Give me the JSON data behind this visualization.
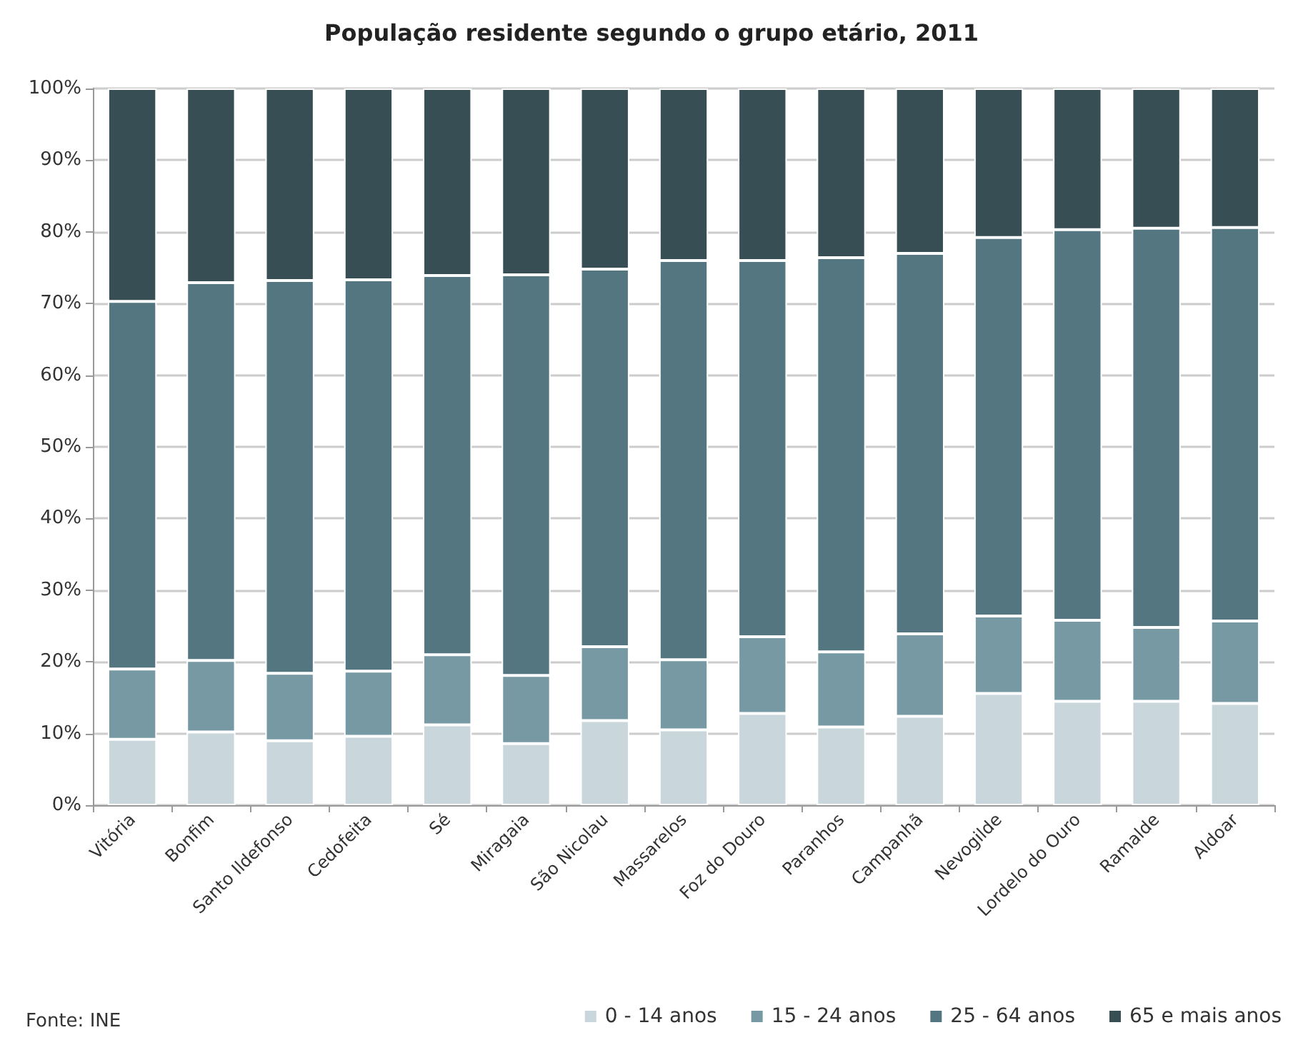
{
  "chart_data": {
    "type": "bar",
    "title": "População residente segundo o grupo etário, 2011",
    "stacked": true,
    "categories": [
      "Vitória",
      "Bonfim",
      "Santo Ildefonso",
      "Cedofeita",
      "Sé",
      "Miragaia",
      "São Nicolau",
      "Massarelos",
      "Foz do Douro",
      "Paranhos",
      "Campanhã",
      "Nevogilde",
      "Lordelo do Ouro",
      "Ramalde",
      "Aldoar"
    ],
    "series": [
      {
        "name": "0 - 14 anos",
        "color": "#c9d7dc",
        "values": [
          9.2,
          10.2,
          9.0,
          9.6,
          11.2,
          8.6,
          11.8,
          10.5,
          12.8,
          10.9,
          12.4,
          15.6,
          14.5,
          14.5,
          14.2
        ]
      },
      {
        "name": "15 - 24 anos",
        "color": "#7699a4",
        "values": [
          9.8,
          10.0,
          9.4,
          9.1,
          9.8,
          9.5,
          10.3,
          9.8,
          10.7,
          10.5,
          11.5,
          10.8,
          11.3,
          10.3,
          11.5
        ]
      },
      {
        "name": "25 - 64 anos",
        "color": "#537680",
        "values": [
          51.3,
          52.7,
          54.8,
          54.6,
          52.9,
          55.9,
          52.7,
          55.7,
          52.5,
          55.0,
          53.1,
          52.8,
          54.5,
          55.7,
          54.9
        ]
      },
      {
        "name": "65 e mais anos",
        "color": "#374e55",
        "values": [
          29.7,
          27.1,
          26.8,
          26.7,
          26.1,
          26.0,
          25.2,
          24.0,
          24.0,
          23.6,
          23.0,
          20.8,
          19.7,
          19.5,
          19.4
        ]
      }
    ],
    "ylim": [
      0,
      100
    ],
    "yticks": [
      {
        "value": 0,
        "label": "0%"
      },
      {
        "value": 10,
        "label": "10%"
      },
      {
        "value": 20,
        "label": "20%"
      },
      {
        "value": 30,
        "label": "30%"
      },
      {
        "value": 40,
        "label": "40%"
      },
      {
        "value": 50,
        "label": "50%"
      },
      {
        "value": 60,
        "label": "60%"
      },
      {
        "value": 70,
        "label": "70%"
      },
      {
        "value": 80,
        "label": "80%"
      },
      {
        "value": 90,
        "label": "90%"
      },
      {
        "value": 100,
        "label": "100%"
      }
    ],
    "grid": "y",
    "legend": "bottom right",
    "annotations": [
      "Fonte: INE"
    ]
  }
}
